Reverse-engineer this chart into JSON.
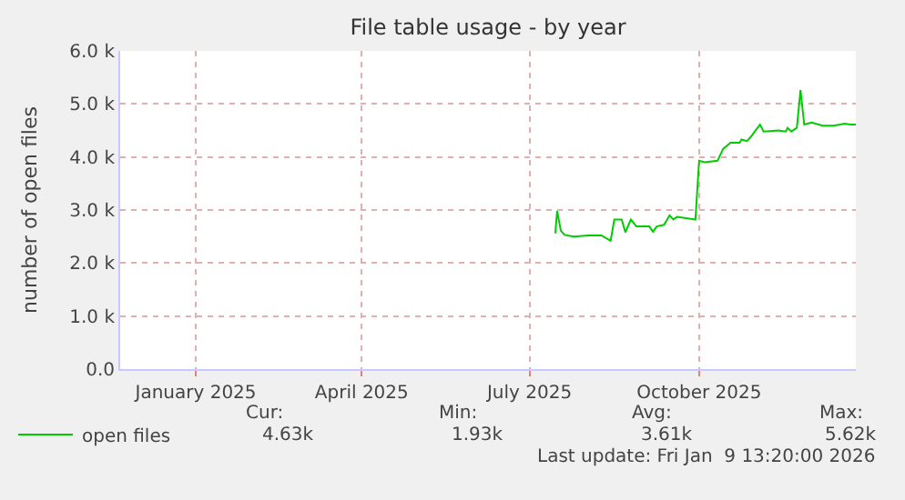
{
  "chart_data": {
    "type": "line",
    "title": "File table usage - by year",
    "ylabel": "number of open files",
    "x": [
      "2025-07-30",
      "2025-07-31",
      "2025-08-02",
      "2025-08-04",
      "2025-08-09",
      "2025-08-17",
      "2025-08-24",
      "2025-08-29",
      "2025-08-31",
      "2025-09-04",
      "2025-09-06",
      "2025-09-09",
      "2025-09-12",
      "2025-09-19",
      "2025-09-21",
      "2025-09-23",
      "2025-09-27",
      "2025-09-30",
      "2025-10-02",
      "2025-10-04",
      "2025-10-14",
      "2025-10-16",
      "2025-10-19",
      "2025-10-26",
      "2025-10-29",
      "2025-11-02",
      "2025-11-07",
      "2025-11-08",
      "2025-11-11",
      "2025-11-13",
      "2025-11-18",
      "2025-11-20",
      "2025-11-28",
      "2025-12-02",
      "2025-12-03",
      "2025-12-05",
      "2025-12-08",
      "2025-12-10",
      "2025-12-12",
      "2025-12-16",
      "2025-12-22",
      "2025-12-28",
      "2026-01-03",
      "2026-01-06",
      "2026-01-09"
    ],
    "series": [
      {
        "name": "open files",
        "color": "#00cc00",
        "values": [
          2.56,
          2.98,
          2.61,
          2.53,
          2.5,
          2.52,
          2.52,
          2.42,
          2.82,
          2.82,
          2.58,
          2.82,
          2.69,
          2.69,
          2.59,
          2.69,
          2.72,
          2.9,
          2.82,
          2.87,
          2.82,
          3.93,
          3.9,
          3.93,
          4.15,
          4.27,
          4.27,
          4.33,
          4.3,
          4.38,
          4.61,
          4.48,
          4.5,
          4.48,
          4.55,
          4.48,
          4.55,
          5.26,
          4.61,
          4.65,
          4.59,
          4.59,
          4.63,
          4.61,
          4.61
        ]
      }
    ],
    "xlim": [
      "2024-12-06",
      "2026-01-09"
    ],
    "xticks": [
      {
        "value": "2025-01-16",
        "label": "January 2025"
      },
      {
        "value": "2025-04-16",
        "label": "April 2025"
      },
      {
        "value": "2025-07-16",
        "label": "July 2025"
      },
      {
        "value": "2025-10-16",
        "label": "October 2025"
      }
    ],
    "ylim": [
      0,
      6
    ],
    "yticks": [
      {
        "value": 0,
        "label": "0.0"
      },
      {
        "value": 1,
        "label": "1.0 k"
      },
      {
        "value": 2,
        "label": "2.0 k"
      },
      {
        "value": 3,
        "label": "3.0 k"
      },
      {
        "value": 4,
        "label": "4.0 k"
      },
      {
        "value": 5,
        "label": "5.0 k"
      },
      {
        "value": 6,
        "label": "6.0 k"
      }
    ],
    "grid": true,
    "legend": "bottom left",
    "marker": "none",
    "line_style": "solid",
    "annotations": [
      "Cur:",
      "4.63k",
      "Min:",
      "1.93k",
      "Avg:",
      "3.61k",
      "Max:",
      "5.62k",
      "Last update: Fri Jan  9 13:20:00 2026"
    ]
  }
}
